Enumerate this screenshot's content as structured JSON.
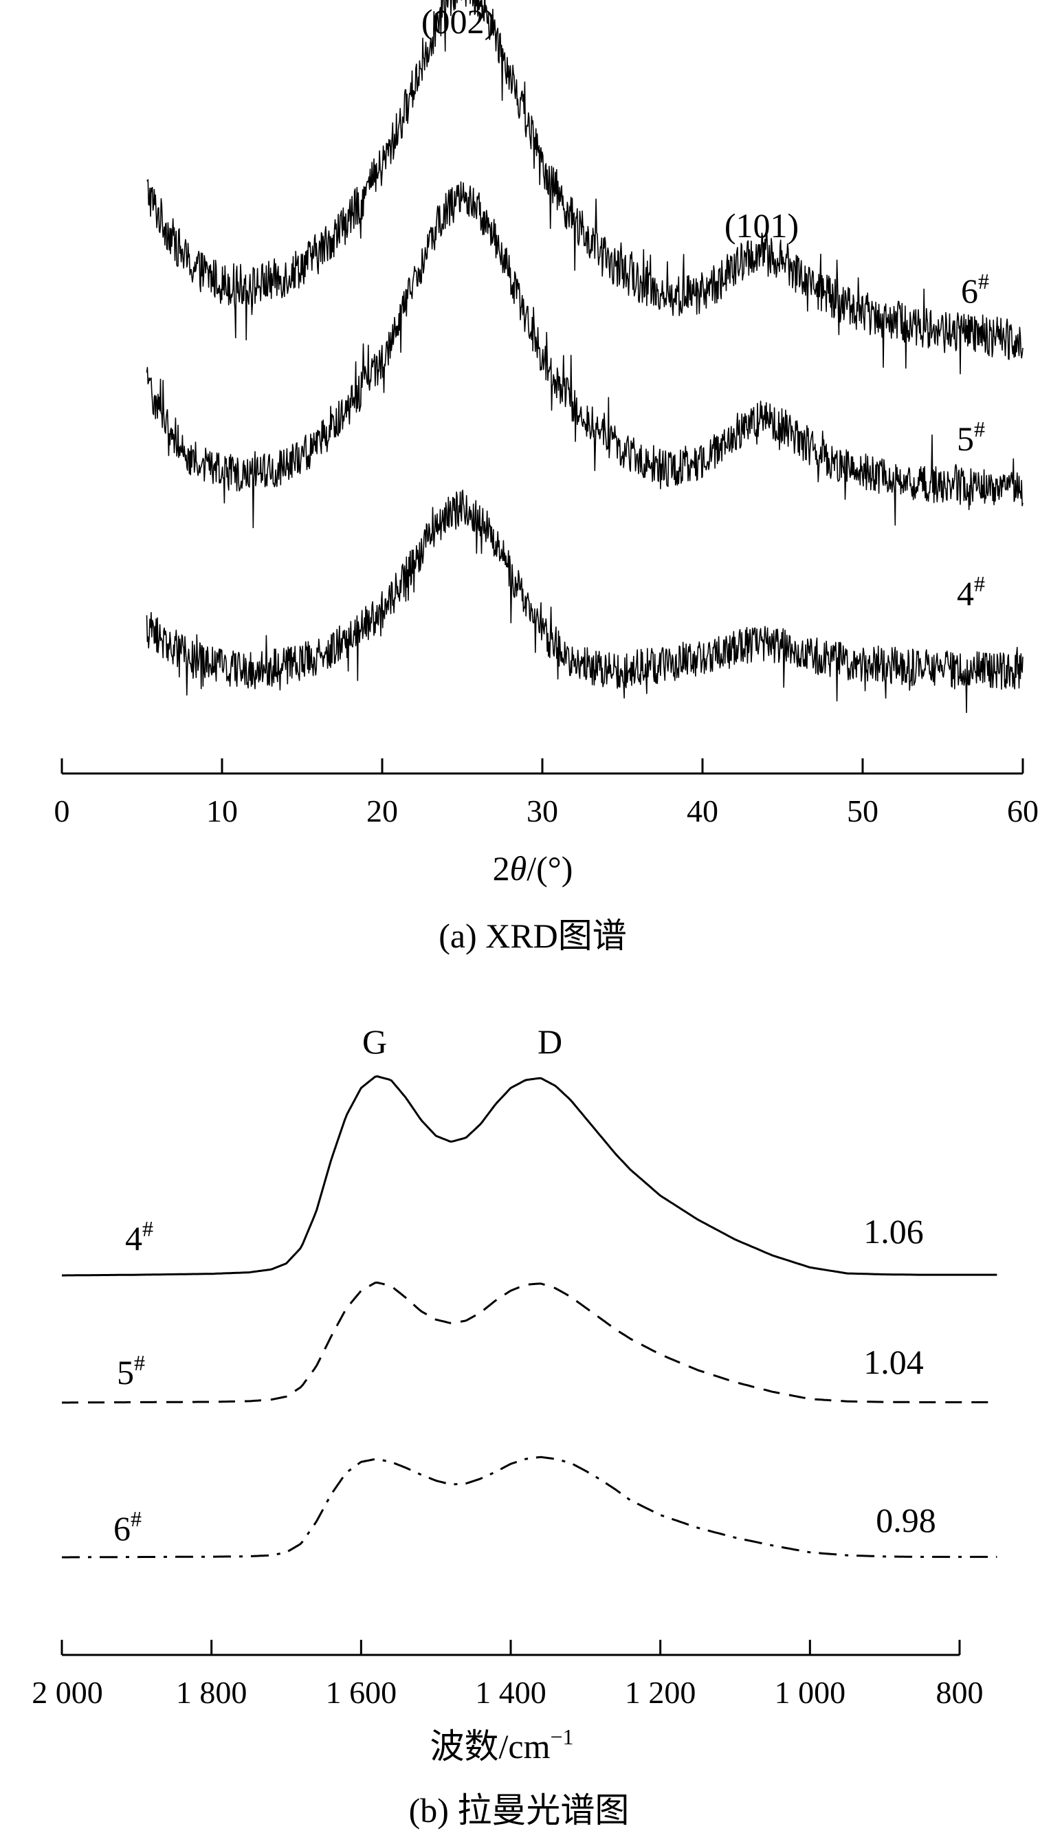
{
  "chart_data": [
    {
      "type": "line",
      "caption": "(a) XRD图谱",
      "xlabel": "2θ/(°)",
      "xlim": [
        0,
        60
      ],
      "ticks": [
        0,
        10,
        20,
        30,
        40,
        50,
        60
      ],
      "tick_labels": [
        "0",
        "10",
        "20",
        "30",
        "40",
        "50",
        "60"
      ],
      "annotations": [
        {
          "text": "(002)",
          "x": 25
        },
        {
          "text": "(101)",
          "x": 43
        }
      ],
      "series": [
        {
          "name": "6#",
          "name_base": "6",
          "name_sup": "#",
          "style": "noisy",
          "x": [
            5.3,
            6,
            7,
            8,
            10,
            12,
            14,
            16,
            18,
            20,
            21,
            22,
            23,
            24,
            25,
            26,
            27,
            28,
            29,
            30,
            32,
            34,
            36,
            38,
            40,
            42,
            43,
            44,
            45,
            46,
            48,
            50,
            52,
            54,
            56,
            58,
            60
          ],
          "y": [
            0.82,
            0.72,
            0.6,
            0.5,
            0.42,
            0.41,
            0.45,
            0.55,
            0.7,
            0.92,
            1.08,
            1.27,
            1.46,
            1.62,
            1.7,
            1.64,
            1.5,
            1.32,
            1.12,
            0.93,
            0.68,
            0.52,
            0.43,
            0.36,
            0.38,
            0.48,
            0.54,
            0.55,
            0.52,
            0.46,
            0.36,
            0.3,
            0.26,
            0.23,
            0.21,
            0.19,
            0.18
          ],
          "noise": 0.09
        },
        {
          "name": "5#",
          "name_base": "5",
          "name_sup": "#",
          "style": "noisy",
          "x": [
            5.3,
            6,
            7,
            8,
            10,
            12,
            14,
            16,
            18,
            20,
            21,
            22,
            23,
            24,
            25,
            26,
            27,
            28,
            29,
            30,
            32,
            34,
            36,
            38,
            40,
            42,
            43,
            44,
            45,
            46,
            48,
            50,
            52,
            54,
            56,
            58,
            60
          ],
          "y": [
            0.62,
            0.52,
            0.4,
            0.3,
            0.24,
            0.23,
            0.26,
            0.36,
            0.52,
            0.72,
            0.87,
            1.05,
            1.22,
            1.36,
            1.42,
            1.37,
            1.25,
            1.08,
            0.9,
            0.73,
            0.52,
            0.38,
            0.3,
            0.25,
            0.28,
            0.4,
            0.46,
            0.47,
            0.44,
            0.38,
            0.29,
            0.24,
            0.21,
            0.19,
            0.18,
            0.17,
            0.16
          ],
          "noise": 0.08
        },
        {
          "name": "4#",
          "name_base": "4",
          "name_sup": "#",
          "style": "noisy",
          "x": [
            5.3,
            6,
            7,
            8,
            10,
            12,
            14,
            16,
            18,
            20,
            21,
            22,
            23,
            24,
            25,
            26,
            27,
            28,
            29,
            30,
            32,
            34,
            36,
            38,
            40,
            42,
            43,
            44,
            45,
            46,
            48,
            50,
            52,
            54,
            56,
            58,
            60
          ],
          "y": [
            0.2,
            0.17,
            0.12,
            0.07,
            0.03,
            0.02,
            0.04,
            0.08,
            0.16,
            0.28,
            0.37,
            0.48,
            0.6,
            0.68,
            0.72,
            0.68,
            0.58,
            0.44,
            0.3,
            0.18,
            0.06,
            0.02,
            0.03,
            0.05,
            0.08,
            0.11,
            0.13,
            0.13,
            0.12,
            0.1,
            0.07,
            0.05,
            0.04,
            0.03,
            0.02,
            0.02,
            0.02
          ],
          "noise": 0.08
        }
      ]
    },
    {
      "type": "line",
      "caption": "(b) 拉曼光谱图",
      "xlabel": "波数/cm⁻¹",
      "xlim": [
        2000,
        800
      ],
      "ticks": [
        2000,
        1800,
        1600,
        1400,
        1200,
        1000,
        800
      ],
      "tick_labels": [
        "2 000",
        "1 800",
        "1 600",
        "1 400",
        "1 200",
        "1 000",
        "800"
      ],
      "annotations": [
        {
          "text": "G",
          "x": 1580
        },
        {
          "text": "D",
          "x": 1350
        }
      ],
      "series": [
        {
          "name": "4#",
          "name_base": "4",
          "name_sup": "#",
          "style": "solid",
          "ratio": "1.06",
          "x": [
            2000,
            1900,
            1800,
            1750,
            1720,
            1700,
            1680,
            1660,
            1640,
            1620,
            1600,
            1580,
            1560,
            1540,
            1520,
            1500,
            1480,
            1460,
            1440,
            1420,
            1400,
            1380,
            1360,
            1340,
            1320,
            1300,
            1280,
            1260,
            1240,
            1200,
            1150,
            1100,
            1050,
            1000,
            950,
            900,
            850,
            750
          ],
          "y": [
            0,
            0.003,
            0.008,
            0.015,
            0.03,
            0.06,
            0.14,
            0.32,
            0.58,
            0.8,
            0.94,
            1.0,
            0.98,
            0.89,
            0.78,
            0.7,
            0.67,
            0.69,
            0.76,
            0.86,
            0.94,
            0.98,
            0.99,
            0.95,
            0.88,
            0.79,
            0.7,
            0.61,
            0.53,
            0.4,
            0.28,
            0.18,
            0.1,
            0.04,
            0.01,
            0.005,
            0.003,
            0.003
          ]
        },
        {
          "name": "5#",
          "name_base": "5",
          "name_sup": "#",
          "style": "dashed",
          "ratio": "1.04",
          "x": [
            2000,
            1900,
            1800,
            1750,
            1720,
            1700,
            1680,
            1660,
            1640,
            1620,
            1600,
            1580,
            1560,
            1540,
            1520,
            1500,
            1480,
            1460,
            1440,
            1420,
            1400,
            1380,
            1360,
            1340,
            1320,
            1300,
            1280,
            1260,
            1240,
            1200,
            1150,
            1100,
            1050,
            1000,
            950,
            900,
            850,
            750
          ],
          "y": [
            0,
            0.003,
            0.006,
            0.012,
            0.025,
            0.05,
            0.13,
            0.3,
            0.55,
            0.78,
            0.93,
            1.0,
            0.97,
            0.87,
            0.76,
            0.69,
            0.66,
            0.68,
            0.75,
            0.85,
            0.93,
            0.98,
            0.99,
            0.95,
            0.88,
            0.79,
            0.7,
            0.61,
            0.53,
            0.4,
            0.27,
            0.17,
            0.09,
            0.03,
            0.01,
            0.005,
            0.003,
            0.003
          ]
        },
        {
          "name": "6#",
          "name_base": "6",
          "name_sup": "#",
          "style": "dashdot",
          "ratio": "0.98",
          "x": [
            2000,
            1900,
            1800,
            1750,
            1720,
            1700,
            1680,
            1660,
            1640,
            1620,
            1600,
            1580,
            1560,
            1540,
            1520,
            1500,
            1480,
            1460,
            1440,
            1420,
            1400,
            1380,
            1360,
            1340,
            1320,
            1300,
            1280,
            1260,
            1240,
            1200,
            1150,
            1100,
            1050,
            1000,
            950,
            900,
            850,
            750
          ],
          "y": [
            0,
            0.003,
            0.006,
            0.01,
            0.02,
            0.05,
            0.14,
            0.36,
            0.64,
            0.86,
            0.97,
            1.0,
            0.97,
            0.91,
            0.84,
            0.78,
            0.74,
            0.75,
            0.8,
            0.87,
            0.95,
            1.0,
            1.02,
            1.0,
            0.96,
            0.88,
            0.79,
            0.69,
            0.58,
            0.43,
            0.3,
            0.2,
            0.12,
            0.05,
            0.02,
            0.008,
            0.004,
            0.004
          ]
        }
      ]
    }
  ]
}
